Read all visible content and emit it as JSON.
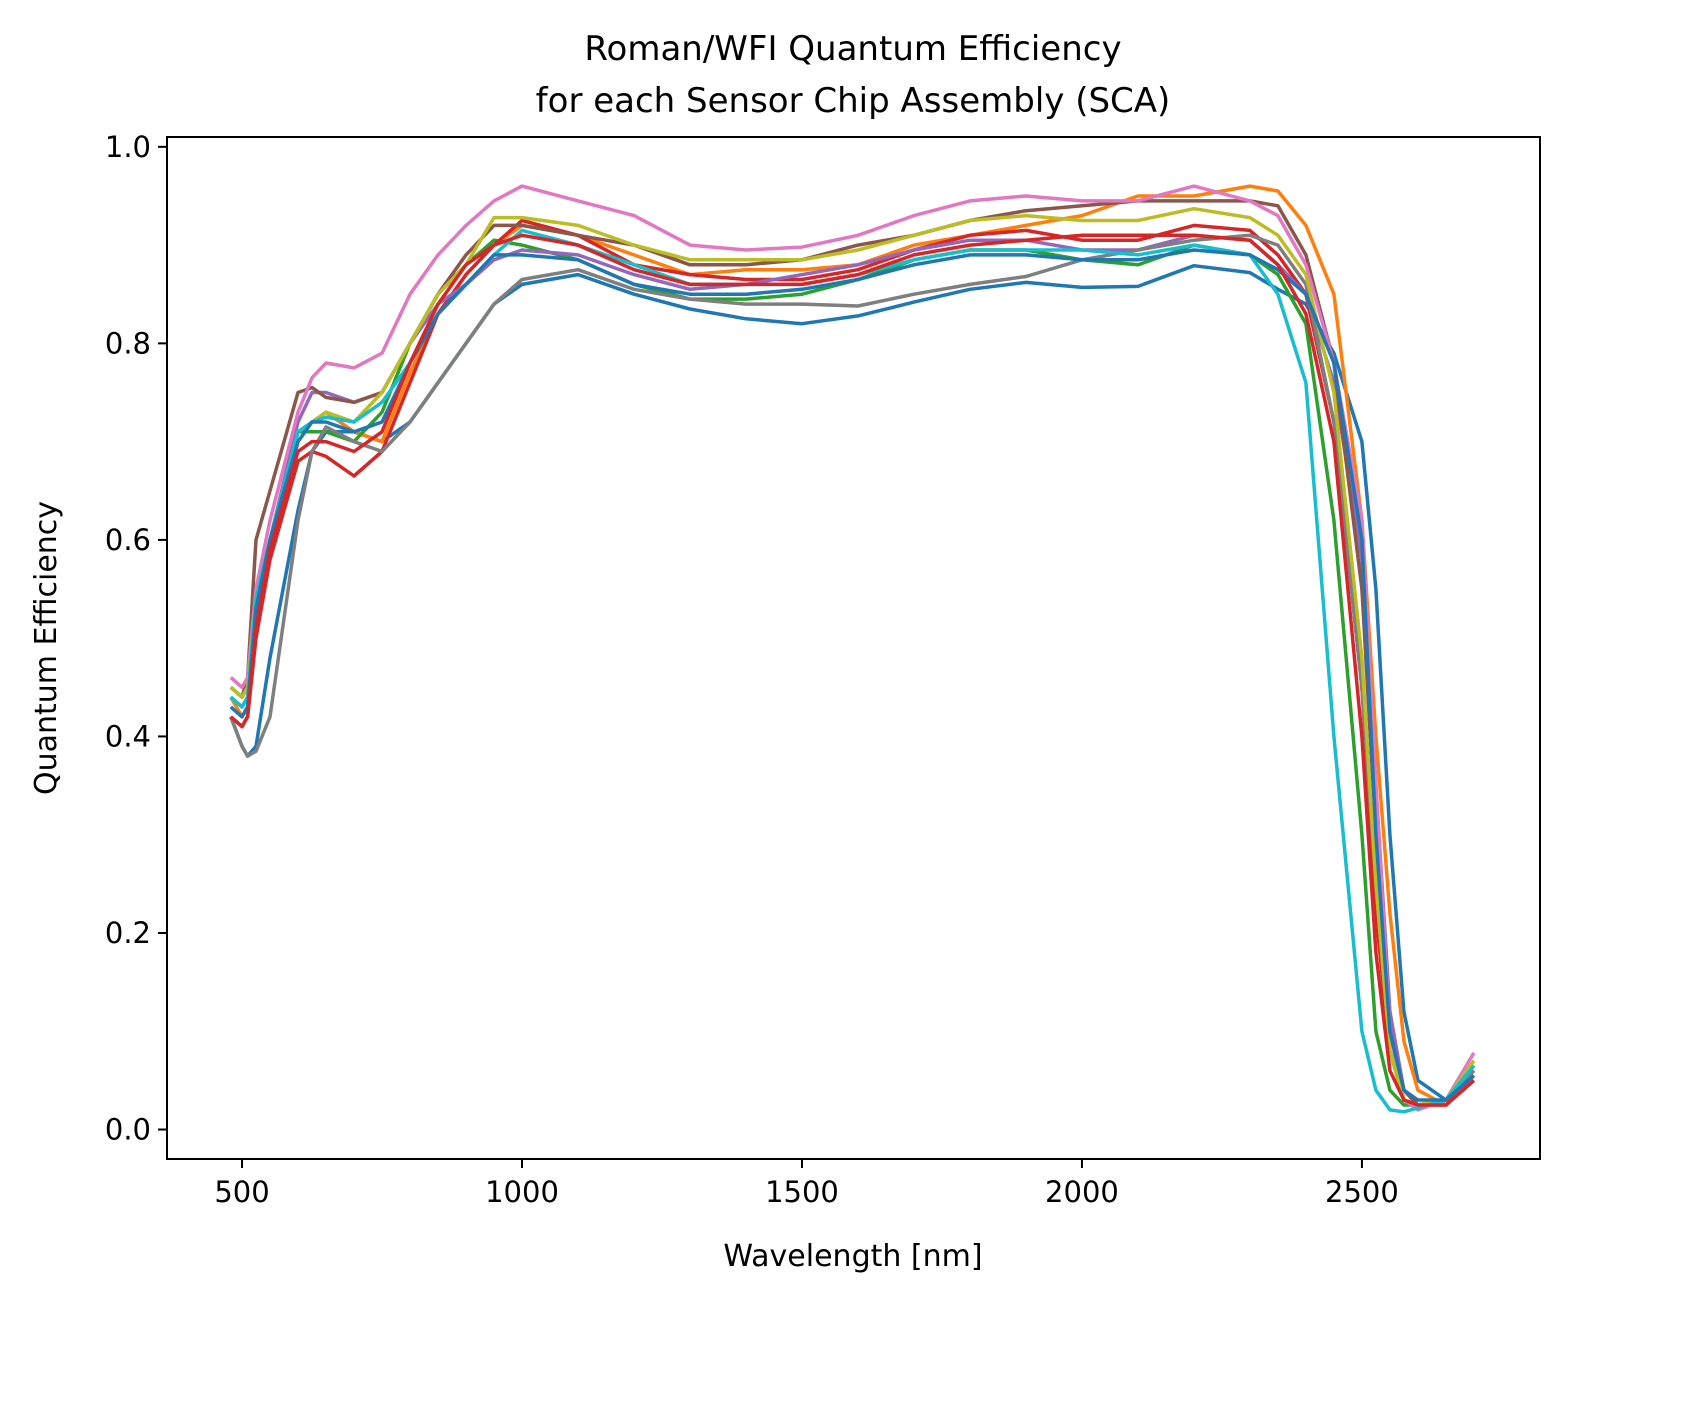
{
  "chart_data": {
    "type": "line",
    "title": [
      "Roman/WFI Quantum Efficiency",
      "for each Sensor Chip Assembly (SCA)"
    ],
    "xlabel": "Wavelength [nm]",
    "ylabel": "Quantum Efficiency",
    "xlim": [
      366,
      2818
    ],
    "ylim": [
      -0.03,
      1.01
    ],
    "xticks": [
      500,
      1000,
      1500,
      2000,
      2500
    ],
    "xtick_labels": [
      "500",
      "1000",
      "1500",
      "2000",
      "2500"
    ],
    "yticks": [
      0.0,
      0.2,
      0.4,
      0.6,
      0.8,
      1.0
    ],
    "ytick_labels": [
      "0.0",
      "0.2",
      "0.4",
      "0.6",
      "0.8",
      "1.0"
    ],
    "grid": false,
    "legend": "none",
    "x": [
      480,
      500,
      510,
      525,
      550,
      600,
      625,
      650,
      700,
      750,
      800,
      850,
      900,
      950,
      1000,
      1100,
      1200,
      1300,
      1400,
      1500,
      1600,
      1700,
      1800,
      1900,
      2000,
      2100,
      2200,
      2300,
      2350,
      2400,
      2450,
      2500,
      2525,
      2550,
      2575,
      2600,
      2650,
      2700
    ],
    "series": [
      {
        "color": "#1f77b4",
        "values": [
          0.42,
          0.39,
          0.38,
          0.39,
          0.48,
          0.63,
          0.69,
          0.71,
          0.71,
          0.7,
          0.72,
          0.76,
          0.8,
          0.84,
          0.86,
          0.87,
          0.85,
          0.835,
          0.825,
          0.82,
          0.828,
          0.842,
          0.855,
          0.862,
          0.857,
          0.858,
          0.879,
          0.872,
          0.855,
          0.84,
          0.79,
          0.7,
          0.55,
          0.3,
          0.12,
          0.05,
          0.03,
          0.05
        ]
      },
      {
        "color": "#ff7f0e",
        "values": [
          0.44,
          0.42,
          0.43,
          0.52,
          0.58,
          0.7,
          0.72,
          0.73,
          0.71,
          0.7,
          0.77,
          0.83,
          0.87,
          0.9,
          0.92,
          0.91,
          0.89,
          0.87,
          0.875,
          0.875,
          0.88,
          0.9,
          0.91,
          0.92,
          0.93,
          0.95,
          0.95,
          0.96,
          0.955,
          0.92,
          0.85,
          0.62,
          0.4,
          0.22,
          0.09,
          0.04,
          0.025,
          0.055
        ]
      },
      {
        "color": "#2ca02c",
        "values": [
          0.44,
          0.43,
          0.44,
          0.53,
          0.6,
          0.71,
          0.71,
          0.71,
          0.7,
          0.73,
          0.8,
          0.85,
          0.88,
          0.905,
          0.9,
          0.885,
          0.86,
          0.845,
          0.845,
          0.85,
          0.865,
          0.885,
          0.895,
          0.895,
          0.885,
          0.88,
          0.9,
          0.89,
          0.87,
          0.82,
          0.62,
          0.3,
          0.1,
          0.04,
          0.025,
          0.025,
          0.03,
          0.065
        ]
      },
      {
        "color": "#d62728",
        "values": [
          0.42,
          0.41,
          0.42,
          0.5,
          0.58,
          0.68,
          0.69,
          0.685,
          0.665,
          0.69,
          0.76,
          0.83,
          0.87,
          0.9,
          0.925,
          0.91,
          0.88,
          0.87,
          0.865,
          0.865,
          0.875,
          0.895,
          0.91,
          0.915,
          0.905,
          0.905,
          0.92,
          0.915,
          0.89,
          0.85,
          0.72,
          0.45,
          0.22,
          0.08,
          0.03,
          0.025,
          0.025,
          0.05
        ]
      },
      {
        "color": "#9467bd",
        "values": [
          0.45,
          0.44,
          0.45,
          0.54,
          0.6,
          0.72,
          0.75,
          0.75,
          0.74,
          0.75,
          0.8,
          0.84,
          0.86,
          0.885,
          0.895,
          0.89,
          0.87,
          0.855,
          0.86,
          0.87,
          0.88,
          0.895,
          0.905,
          0.905,
          0.895,
          0.895,
          0.91,
          0.905,
          0.88,
          0.85,
          0.76,
          0.58,
          0.35,
          0.12,
          0.04,
          0.025,
          0.03,
          0.06
        ]
      },
      {
        "color": "#8c564b",
        "values": [
          0.45,
          0.44,
          0.46,
          0.6,
          0.65,
          0.75,
          0.755,
          0.745,
          0.74,
          0.75,
          0.8,
          0.85,
          0.89,
          0.92,
          0.92,
          0.91,
          0.9,
          0.88,
          0.88,
          0.885,
          0.9,
          0.91,
          0.925,
          0.935,
          0.94,
          0.945,
          0.945,
          0.945,
          0.94,
          0.89,
          0.78,
          0.55,
          0.3,
          0.1,
          0.04,
          0.025,
          0.03,
          0.065
        ]
      },
      {
        "color": "#e377c2",
        "values": [
          0.46,
          0.45,
          0.46,
          0.55,
          0.62,
          0.73,
          0.765,
          0.78,
          0.775,
          0.79,
          0.85,
          0.89,
          0.92,
          0.945,
          0.96,
          0.945,
          0.93,
          0.9,
          0.895,
          0.898,
          0.91,
          0.93,
          0.945,
          0.95,
          0.945,
          0.945,
          0.96,
          0.945,
          0.93,
          0.88,
          0.78,
          0.62,
          0.35,
          0.1,
          0.03,
          0.02,
          0.03,
          0.078
        ]
      },
      {
        "color": "#7f7f7f",
        "values": [
          0.42,
          0.39,
          0.38,
          0.385,
          0.42,
          0.62,
          0.69,
          0.715,
          0.7,
          0.69,
          0.72,
          0.76,
          0.8,
          0.84,
          0.865,
          0.875,
          0.855,
          0.845,
          0.84,
          0.84,
          0.838,
          0.85,
          0.86,
          0.868,
          0.885,
          0.895,
          0.905,
          0.91,
          0.9,
          0.86,
          0.72,
          0.45,
          0.25,
          0.08,
          0.03,
          0.025,
          0.03,
          0.06
        ]
      },
      {
        "color": "#bcbd22",
        "values": [
          0.45,
          0.44,
          0.45,
          0.54,
          0.6,
          0.71,
          0.72,
          0.73,
          0.72,
          0.75,
          0.8,
          0.85,
          0.88,
          0.928,
          0.928,
          0.92,
          0.9,
          0.885,
          0.885,
          0.885,
          0.895,
          0.91,
          0.925,
          0.93,
          0.925,
          0.925,
          0.937,
          0.928,
          0.91,
          0.87,
          0.75,
          0.48,
          0.25,
          0.08,
          0.03,
          0.025,
          0.03,
          0.07
        ]
      },
      {
        "color": "#17becf",
        "values": [
          0.44,
          0.43,
          0.44,
          0.54,
          0.6,
          0.71,
          0.72,
          0.725,
          0.72,
          0.74,
          0.78,
          0.83,
          0.86,
          0.89,
          0.915,
          0.9,
          0.88,
          0.86,
          0.86,
          0.86,
          0.87,
          0.885,
          0.895,
          0.895,
          0.895,
          0.89,
          0.9,
          0.89,
          0.85,
          0.76,
          0.4,
          0.1,
          0.04,
          0.02,
          0.018,
          0.022,
          0.03,
          0.065
        ]
      },
      {
        "color": "#1f77b4",
        "values": [
          0.43,
          0.42,
          0.43,
          0.53,
          0.6,
          0.7,
          0.72,
          0.72,
          0.71,
          0.72,
          0.78,
          0.83,
          0.86,
          0.89,
          0.89,
          0.885,
          0.86,
          0.85,
          0.85,
          0.855,
          0.865,
          0.88,
          0.89,
          0.89,
          0.885,
          0.885,
          0.895,
          0.89,
          0.875,
          0.85,
          0.78,
          0.6,
          0.3,
          0.1,
          0.04,
          0.03,
          0.03,
          0.055
        ]
      },
      {
        "color": "#d62728",
        "values": [
          0.42,
          0.41,
          0.42,
          0.51,
          0.59,
          0.69,
          0.7,
          0.7,
          0.69,
          0.71,
          0.78,
          0.84,
          0.88,
          0.9,
          0.91,
          0.9,
          0.875,
          0.86,
          0.86,
          0.86,
          0.87,
          0.89,
          0.9,
          0.905,
          0.91,
          0.91,
          0.91,
          0.905,
          0.88,
          0.83,
          0.7,
          0.4,
          0.18,
          0.06,
          0.03,
          0.025,
          0.025,
          0.05
        ]
      }
    ]
  }
}
